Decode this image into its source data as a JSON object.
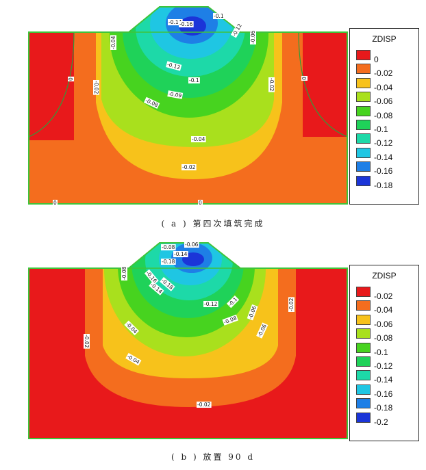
{
  "panel_a": {
    "caption": "( a ) 第四次填筑完成",
    "legend": {
      "title": "ZDISP",
      "items": [
        {
          "label": "0",
          "color": "#e8191b"
        },
        {
          "label": "-0.02",
          "color": "#f46d1e"
        },
        {
          "label": "-0.04",
          "color": "#f7c21b"
        },
        {
          "label": "-0.06",
          "color": "#a9e01d"
        },
        {
          "label": "-0.08",
          "color": "#47d31f"
        },
        {
          "label": "-0.1",
          "color": "#1fd259"
        },
        {
          "label": "-0.12",
          "color": "#1dd9a8"
        },
        {
          "label": "-0.14",
          "color": "#1fc6e3"
        },
        {
          "label": "-0.16",
          "color": "#1e7fe6"
        },
        {
          "label": "-0.18",
          "color": "#1b35d8"
        }
      ]
    },
    "contour_labels": [
      "-0.1",
      "-0.14",
      "-0.16",
      "-0.12",
      "-0.04",
      "-0.06",
      "0",
      "-0.02",
      "-0.02",
      "0",
      "-0.12",
      "-0.1",
      "-0.09",
      "-0.08",
      "-0.04",
      "-0.02",
      "0",
      "0"
    ]
  },
  "panel_b": {
    "caption": "( b ) 放置 90 d",
    "legend": {
      "title": "ZDISP",
      "items": [
        {
          "label": "-0.02",
          "color": "#e8191b"
        },
        {
          "label": "-0.04",
          "color": "#f46d1e"
        },
        {
          "label": "-0.06",
          "color": "#f7c21b"
        },
        {
          "label": "-0.08",
          "color": "#a9e01d"
        },
        {
          "label": "-0.1",
          "color": "#47d31f"
        },
        {
          "label": "-0.12",
          "color": "#1fd259"
        },
        {
          "label": "-0.14",
          "color": "#1dd9a8"
        },
        {
          "label": "-0.16",
          "color": "#1fc6e3"
        },
        {
          "label": "-0.18",
          "color": "#1e7fe6"
        },
        {
          "label": "-0.2",
          "color": "#1b35d8"
        }
      ]
    },
    "contour_labels": [
      "-0.08",
      "-0.06",
      "-0.14",
      "-0.18",
      "-0.08",
      "-0.16",
      "-0.18",
      "-0.14",
      "-0.12",
      "-0.1",
      "-0.08",
      "-0.06",
      "-0.02",
      "-0.02",
      "-0.04",
      "-0.06",
      "-0.04",
      "-0.02"
    ]
  }
}
